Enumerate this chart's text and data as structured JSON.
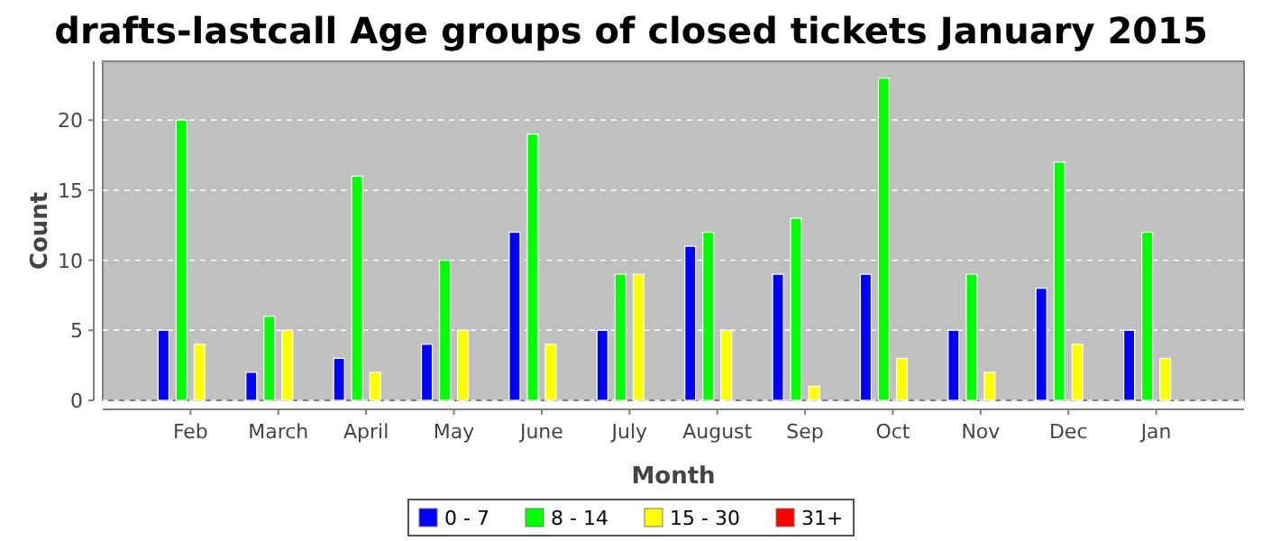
{
  "chart_data": {
    "type": "bar",
    "title": "drafts-lastcall Age groups of closed tickets January 2015",
    "xlabel": "Month",
    "ylabel": "Count",
    "categories": [
      "Feb",
      "March",
      "April",
      "May",
      "June",
      "July",
      "August",
      "Sep",
      "Oct",
      "Nov",
      "Dec",
      "Jan"
    ],
    "series": [
      {
        "name": "0 - 7",
        "color": "#0000ff",
        "values": [
          5,
          2,
          3,
          4,
          12,
          5,
          11,
          9,
          9,
          5,
          8,
          5
        ]
      },
      {
        "name": "8 - 14",
        "color": "#00ff00",
        "values": [
          20,
          6,
          16,
          10,
          19,
          9,
          12,
          13,
          23,
          9,
          17,
          12
        ]
      },
      {
        "name": "15 - 30",
        "color": "#ffff00",
        "values": [
          4,
          5,
          2,
          5,
          4,
          9,
          5,
          1,
          3,
          2,
          4,
          3
        ]
      },
      {
        "name": "31+",
        "color": "#ff0000",
        "values": [
          0,
          0,
          0,
          0,
          0,
          0,
          0,
          0,
          0,
          0,
          0,
          0
        ]
      }
    ],
    "ylim": [
      0,
      24.2
    ],
    "yticks": [
      0,
      5,
      10,
      15,
      20
    ],
    "grid": "y",
    "legend": "bottom"
  }
}
